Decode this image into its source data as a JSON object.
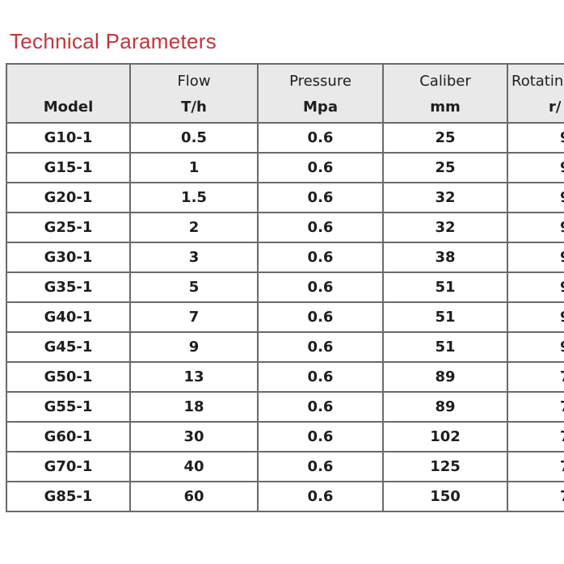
{
  "title": "Technical Parameters",
  "table": {
    "header": [
      [
        "Model"
      ],
      [
        "Flow",
        "T/h"
      ],
      [
        "Pressure",
        "Mpa"
      ],
      [
        "Caliber",
        "mm"
      ],
      [
        "Rotatin",
        "r/"
      ]
    ],
    "rows": [
      [
        "G10-1",
        "0.5",
        "0.6",
        "25",
        "9"
      ],
      [
        "G15-1",
        "1",
        "0.6",
        "25",
        "9"
      ],
      [
        "G20-1",
        "1.5",
        "0.6",
        "32",
        "9"
      ],
      [
        "G25-1",
        "2",
        "0.6",
        "32",
        "9"
      ],
      [
        "G30-1",
        "3",
        "0.6",
        "38",
        "9"
      ],
      [
        "G35-1",
        "5",
        "0.6",
        "51",
        "9"
      ],
      [
        "G40-1",
        "7",
        "0.6",
        "51",
        "9"
      ],
      [
        "G45-1",
        "9",
        "0.6",
        "51",
        "9"
      ],
      [
        "G50-1",
        "13",
        "0.6",
        "89",
        "7"
      ],
      [
        "G55-1",
        "18",
        "0.6",
        "89",
        "7"
      ],
      [
        "G60-1",
        "30",
        "0.6",
        "102",
        "7"
      ],
      [
        "G70-1",
        "40",
        "0.6",
        "125",
        "7"
      ],
      [
        "G85-1",
        "60",
        "0.6",
        "150",
        "7"
      ]
    ]
  }
}
